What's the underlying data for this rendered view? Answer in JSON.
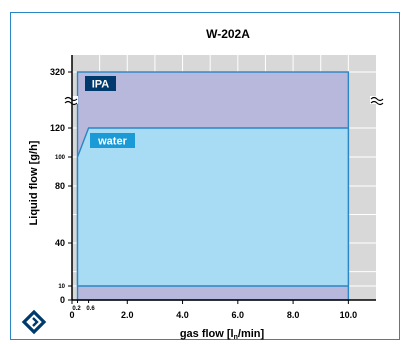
{
  "chart_data": {
    "type": "area",
    "title": "W-202A",
    "xlabel_main": "gas flow [l",
    "xlabel_sub": "n",
    "xlabel_tail": "/min]",
    "ylabel": "Liquid flow [g/h]",
    "xlim": [
      0,
      11
    ],
    "x_ticks_major": [
      {
        "value": 0,
        "label": "0"
      },
      {
        "value": 2,
        "label": "2.0"
      },
      {
        "value": 4,
        "label": "4.0"
      },
      {
        "value": 6,
        "label": "6.0"
      },
      {
        "value": 8,
        "label": "8.0"
      },
      {
        "value": 10,
        "label": "10.0"
      }
    ],
    "x_ticks_minor": [
      {
        "value": 0.2,
        "label": "0.2"
      },
      {
        "value": 0.6,
        "label": "0.6"
      }
    ],
    "y_ticks": [
      {
        "value": 0,
        "label": "0",
        "size": "normal"
      },
      {
        "value": 10,
        "label": "10",
        "size": "small"
      },
      {
        "value": 40,
        "label": "40",
        "size": "normal"
      },
      {
        "value": 80,
        "label": "80",
        "size": "normal"
      },
      {
        "value": 100,
        "label": "100",
        "size": "small"
      },
      {
        "value": 120,
        "label": "120",
        "size": "normal"
      },
      {
        "value": 320,
        "label": "320",
        "size": "normal"
      }
    ],
    "y_axis_break": "between 120 and 320",
    "series": [
      {
        "name": "IPA",
        "color": "#b8b8dc",
        "label_bg": "#003a6c",
        "x_range": [
          0.2,
          10.0
        ],
        "y_range": [
          0,
          320
        ]
      },
      {
        "name": "water",
        "color": "#a8dcf4",
        "label_bg": "#1a9ad6",
        "x_range": [
          0.2,
          10.0
        ],
        "y_range": [
          10,
          120
        ],
        "lower_left_point": [
          0.2,
          100
        ],
        "upper_left_point": [
          0.6,
          120
        ]
      }
    ],
    "grid": true,
    "grid_color": "#ffffff",
    "plot_bg": "#d8d8d8",
    "line_color": "#2a86c4",
    "axis_color": "#000000"
  },
  "logo": {
    "name": "bronkhorst-logo-icon",
    "color": "#003a6c"
  }
}
